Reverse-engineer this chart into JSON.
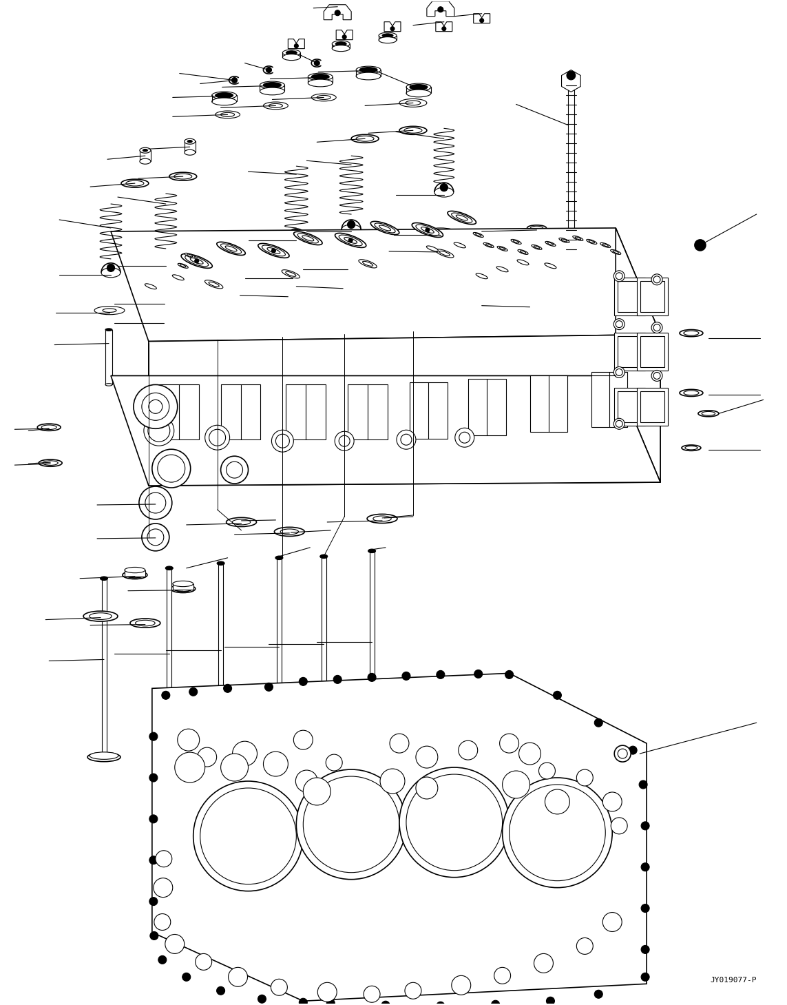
{
  "bg_color": "#ffffff",
  "line_color": "#000000",
  "fig_width": 11.43,
  "fig_height": 14.59,
  "dpi": 100,
  "watermark": "JY019077-P",
  "watermark_fontsize": 8
}
